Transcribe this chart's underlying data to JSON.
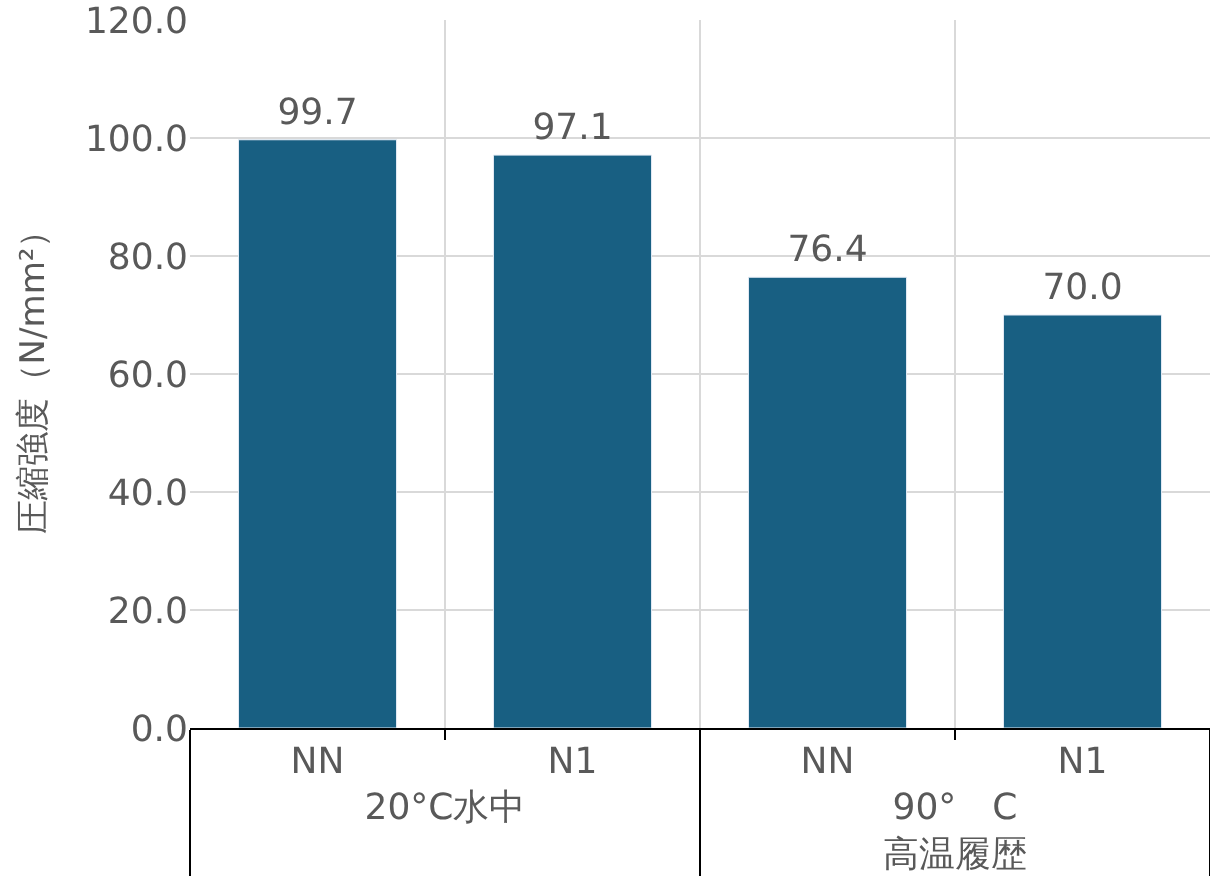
{
  "chart_data": {
    "type": "bar",
    "ylabel": "圧縮強度（N/mm²）",
    "categories": [
      "NN",
      "N1",
      "NN",
      "N1"
    ],
    "values": [
      99.7,
      97.1,
      76.4,
      70.0
    ],
    "color": "#185f82",
    "ylim": [
      0,
      120
    ],
    "yticks": [
      {
        "value": 0,
        "label": "0.0"
      },
      {
        "value": 20,
        "label": "20.0"
      },
      {
        "value": 40,
        "label": "40.0"
      },
      {
        "value": 60,
        "label": "60.0"
      },
      {
        "value": 80,
        "label": "80.0"
      },
      {
        "value": 100,
        "label": "100.0"
      },
      {
        "value": 120,
        "label": "120.0"
      }
    ],
    "grid": true,
    "value_labels": [
      "99.7",
      "97.1",
      "76.4",
      "70.0"
    ],
    "annotations": [
      "20°C水中",
      "90°　C\n高温履歴"
    ]
  }
}
